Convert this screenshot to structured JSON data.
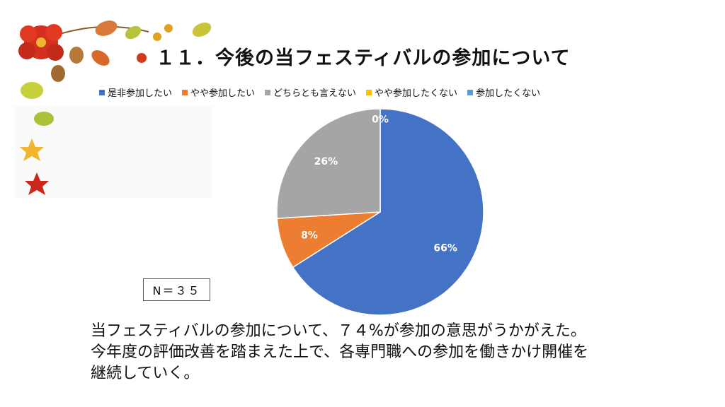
{
  "title": "１１．今後の当フェスティバルの参加について",
  "n_label": "N＝３５",
  "summary_lines": [
    "当フェスティバルの参加について、７４%が参加の意思がうかがえた。",
    "今年度の評価改善を踏まえた上で、各専門職への参加を働きかけ開催を",
    "継続していく。"
  ],
  "chart_data": {
    "type": "pie",
    "categories": [
      "是非参加したい",
      "やや参加したい",
      "どちらとも言えない",
      "やや参加したくない",
      "参加したくない"
    ],
    "values": [
      66,
      8,
      26,
      0,
      0
    ],
    "labels": [
      "66%",
      "8%",
      "26%",
      "0%",
      ""
    ],
    "colors": [
      "#4472C4",
      "#ED7D31",
      "#A5A5A5",
      "#FFC000",
      "#5B9BD5"
    ],
    "legend_position": "top"
  }
}
